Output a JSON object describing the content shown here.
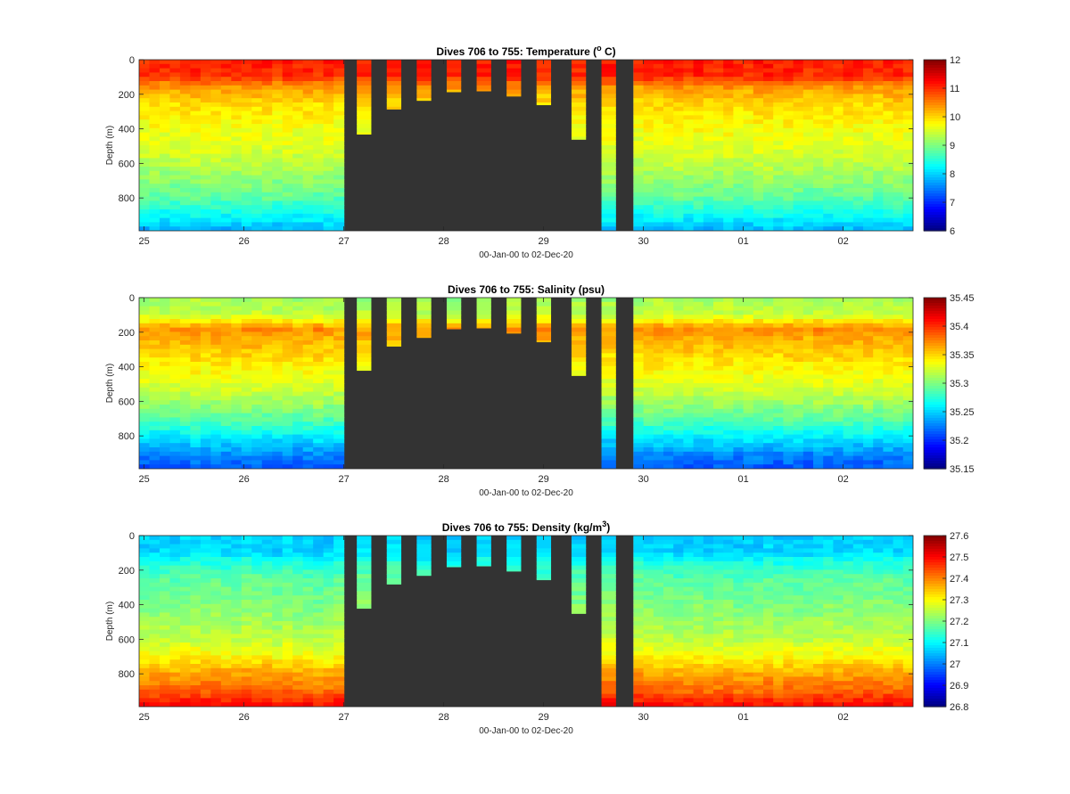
{
  "chart_data": [
    {
      "type": "heatmap",
      "title_main": "Dives 706 to 755: Temperature (",
      "title_sup": "o",
      "title_end": " C)",
      "xlabel": "00-Jan-00 to 02-Dec-20",
      "ylabel": "Depth (m)",
      "x_ticks": [
        "25",
        "26",
        "27",
        "28",
        "29",
        "30",
        "01",
        "02"
      ],
      "y_ticks": [
        "0",
        "200",
        "400",
        "600",
        "800"
      ],
      "ylim": [
        0,
        990
      ],
      "xlim_days": [
        24.95,
        32.7
      ],
      "gap_days": [
        27.0,
        29.9
      ],
      "partial_casts": [
        {
          "day": 27.2,
          "depth": 430
        },
        {
          "day": 27.5,
          "depth": 285
        },
        {
          "day": 27.8,
          "depth": 235
        },
        {
          "day": 28.1,
          "depth": 185
        },
        {
          "day": 28.4,
          "depth": 180
        },
        {
          "day": 28.7,
          "depth": 210
        },
        {
          "day": 29.0,
          "depth": 260
        },
        {
          "day": 29.35,
          "depth": 460
        },
        {
          "day": 29.65,
          "depth": 990
        }
      ],
      "profile": {
        "depth": [
          0,
          100,
          150,
          250,
          400,
          550,
          700,
          800,
          900,
          990
        ],
        "value": [
          11.1,
          11.0,
          10.4,
          10.0,
          9.7,
          9.5,
          9.1,
          8.8,
          8.3,
          7.8
        ]
      },
      "clim": [
        6,
        12
      ],
      "colorbar_ticks": [
        "12",
        "11",
        "10",
        "9",
        "8",
        "7",
        "6"
      ]
    },
    {
      "type": "heatmap",
      "title_main": "Dives 706 to 755: Salinity (psu)",
      "title_sup": "",
      "title_end": "",
      "xlabel": "00-Jan-00 to 02-Dec-20",
      "ylabel": "Depth (m)",
      "x_ticks": [
        "25",
        "26",
        "27",
        "28",
        "29",
        "30",
        "01",
        "02"
      ],
      "y_ticks": [
        "0",
        "200",
        "400",
        "600",
        "800"
      ],
      "ylim": [
        0,
        990
      ],
      "xlim_days": [
        24.95,
        32.7
      ],
      "gap_days": [
        27.0,
        29.9
      ],
      "partial_casts": [
        {
          "day": 27.2,
          "depth": 420
        },
        {
          "day": 27.5,
          "depth": 280
        },
        {
          "day": 27.8,
          "depth": 230
        },
        {
          "day": 28.1,
          "depth": 180
        },
        {
          "day": 28.4,
          "depth": 175
        },
        {
          "day": 28.7,
          "depth": 205
        },
        {
          "day": 29.0,
          "depth": 255
        },
        {
          "day": 29.35,
          "depth": 450
        },
        {
          "day": 29.65,
          "depth": 990
        }
      ],
      "profile": {
        "depth": [
          0,
          100,
          180,
          250,
          400,
          550,
          700,
          800,
          900,
          990
        ],
        "value": [
          35.31,
          35.32,
          35.37,
          35.36,
          35.34,
          35.32,
          35.29,
          35.26,
          35.23,
          35.21
        ]
      },
      "clim": [
        35.15,
        35.45
      ],
      "colorbar_ticks": [
        "35.45",
        "35.4",
        "35.35",
        "35.3",
        "35.25",
        "35.2",
        "35.15"
      ]
    },
    {
      "type": "heatmap",
      "title_main": "Dives 706 to 755: Density (kg/m",
      "title_sup": "3",
      "title_end": ")",
      "xlabel": "00-Jan-00 to 02-Dec-20",
      "ylabel": "Depth (m)",
      "x_ticks": [
        "25",
        "26",
        "27",
        "28",
        "29",
        "30",
        "01",
        "02"
      ],
      "y_ticks": [
        "0",
        "200",
        "400",
        "600",
        "800"
      ],
      "ylim": [
        0,
        990
      ],
      "xlim_days": [
        24.95,
        32.7
      ],
      "gap_days": [
        27.0,
        29.9
      ],
      "partial_casts": [
        {
          "day": 27.2,
          "depth": 420
        },
        {
          "day": 27.5,
          "depth": 280
        },
        {
          "day": 27.8,
          "depth": 230
        },
        {
          "day": 28.1,
          "depth": 180
        },
        {
          "day": 28.4,
          "depth": 175
        },
        {
          "day": 28.7,
          "depth": 205
        },
        {
          "day": 29.0,
          "depth": 255
        },
        {
          "day": 29.35,
          "depth": 450
        },
        {
          "day": 29.65,
          "depth": 990
        }
      ],
      "profile": {
        "depth": [
          0,
          100,
          150,
          250,
          400,
          600,
          700,
          800,
          900,
          990
        ],
        "value": [
          27.06,
          27.07,
          27.12,
          27.17,
          27.2,
          27.25,
          27.3,
          27.37,
          27.42,
          27.5
        ]
      },
      "clim": [
        26.8,
        27.6
      ],
      "colorbar_ticks": [
        "27.6",
        "27.5",
        "27.4",
        "27.3",
        "27.2",
        "27.1",
        "27",
        "26.9",
        "26.8"
      ]
    }
  ],
  "style": {
    "gap_color": "#333333",
    "colormap": "jet"
  }
}
